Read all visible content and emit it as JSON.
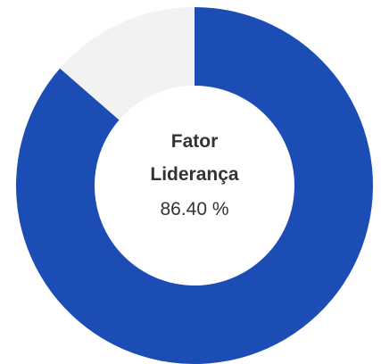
{
  "chart_data": {
    "type": "donut",
    "title": "Fator Liderança",
    "values": [
      86.4,
      13.6
    ],
    "value_labels": [
      "86.40 %",
      null
    ],
    "colors": [
      "#1c4db5",
      "#f2f2f2"
    ]
  }
}
